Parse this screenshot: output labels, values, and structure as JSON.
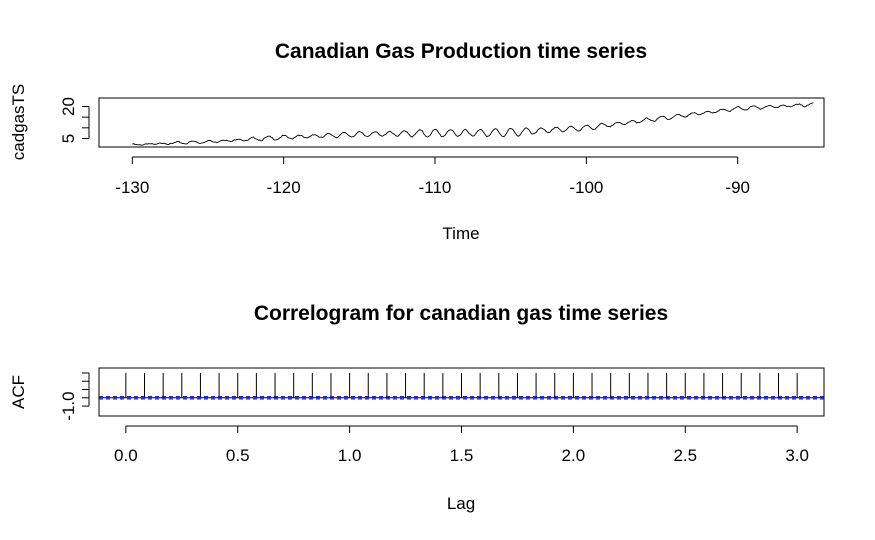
{
  "chart_data": [
    {
      "type": "line",
      "title": "Canadian Gas Production time series",
      "xlabel": "Time",
      "ylabel": "cadgasTS",
      "xlim": [
        -132.2,
        -84.3
      ],
      "ylim": [
        1.0,
        24.0
      ],
      "x_ticks": [
        -130,
        -120,
        -110,
        -100,
        -90
      ],
      "x_tick_labels": [
        "-130",
        "-120",
        "-110",
        "-100",
        "-90"
      ],
      "y_ticks": [
        5,
        10,
        15,
        20
      ],
      "y_tick_labels": [
        "5",
        "",
        "",
        "20"
      ],
      "series": [
        {
          "color": "#000000",
          "x_start": -130,
          "x_end": -85,
          "samples_per_year": 12,
          "trend_knots_x": [
            -130,
            -125,
            -120,
            -115,
            -110,
            -105,
            -100,
            -95,
            -90,
            -85
          ],
          "trend_knots_y": [
            2.0,
            3.5,
            5.5,
            7.0,
            7.5,
            7.8,
            10.0,
            14.5,
            19.0,
            21.0
          ],
          "seasonal_amplitude_knots_y": [
            0.3,
            0.5,
            0.8,
            1.0,
            1.6,
            1.8,
            1.0,
            0.8,
            0.7,
            0.7
          ]
        }
      ]
    },
    {
      "type": "bar",
      "title": "Correlogram for canadian gas time series",
      "xlabel": "Lag",
      "ylabel": "ACF",
      "xlim": [
        -0.12,
        3.12
      ],
      "ylim": [
        -2.2,
        3.6
      ],
      "x_ticks": [
        0.0,
        0.5,
        1.0,
        1.5,
        2.0,
        2.5,
        3.0
      ],
      "x_tick_labels": [
        "0.0",
        "0.5",
        "1.0",
        "1.5",
        "2.0",
        "2.5",
        "3.0"
      ],
      "y_ticks": [
        -1.0,
        0,
        1.0,
        2.0,
        3.0
      ],
      "y_tick_labels": [
        "-1.0",
        "",
        "",
        "",
        ""
      ],
      "lags": [
        0,
        0.0833,
        0.1667,
        0.25,
        0.3333,
        0.4167,
        0.5,
        0.5833,
        0.6667,
        0.75,
        0.8333,
        0.9167,
        1.0,
        1.0833,
        1.1667,
        1.25,
        1.3333,
        1.4167,
        1.5,
        1.5833,
        1.6667,
        1.75,
        1.8333,
        1.9167,
        2.0,
        2.0833,
        2.1667,
        2.25,
        2.3333,
        2.4167,
        2.5,
        2.5833,
        2.6667,
        2.75,
        2.8333,
        2.9167,
        3.0
      ],
      "acf": [
        3.0,
        3.0,
        3.0,
        3.0,
        3.0,
        3.0,
        3.0,
        3.0,
        3.0,
        3.0,
        3.0,
        3.0,
        3.0,
        3.0,
        3.0,
        3.0,
        3.0,
        3.0,
        3.0,
        3.0,
        3.0,
        3.0,
        3.0,
        3.0,
        3.0,
        3.0,
        3.0,
        3.0,
        3.0,
        3.0,
        3.0,
        3.0,
        3.0,
        3.0,
        3.0,
        3.0,
        3.0
      ],
      "baseline": 0,
      "confidence_bounds": [
        0.14,
        -0.14
      ],
      "baseline_color": "#000000",
      "confidence_color": "#0000ff"
    }
  ]
}
